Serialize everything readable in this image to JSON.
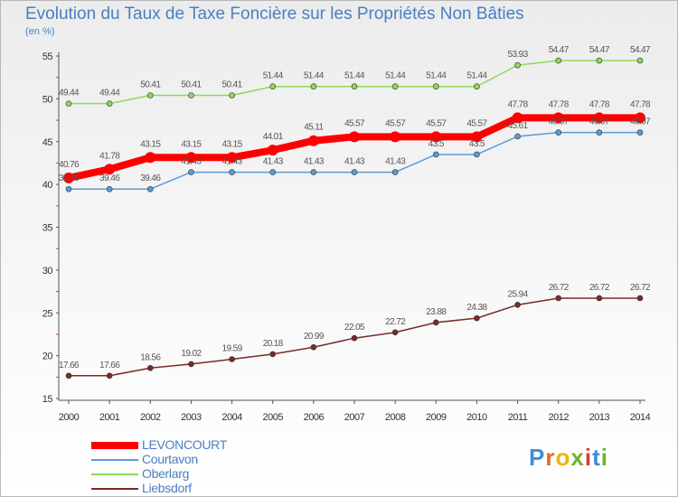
{
  "title": "Evolution du Taux de Taxe Foncière sur les Propriétés Non Bâties",
  "subtitle": "(en %)",
  "logo": {
    "letters": [
      "P",
      "r",
      "o",
      "x",
      "i",
      "t",
      "i"
    ],
    "colors": [
      "#3a8fd8",
      "#e86a1a",
      "#f0b400",
      "#6bb52e",
      "#d83a3a",
      "#3a8fd8",
      "#6bb52e"
    ]
  },
  "chart_data": {
    "type": "line",
    "x": [
      2000,
      2001,
      2002,
      2003,
      2004,
      2005,
      2006,
      2007,
      2008,
      2009,
      2010,
      2011,
      2012,
      2013,
      2014
    ],
    "ylim": [
      15,
      55
    ],
    "yticks": [
      15,
      20,
      25,
      30,
      35,
      40,
      45,
      50,
      55
    ],
    "grid": false,
    "legend_position": "bottom-left",
    "series": [
      {
        "name": "LEVONCOURT",
        "color": "#ff0000",
        "values": [
          40.76,
          41.78,
          43.15,
          43.15,
          43.15,
          44.01,
          45.11,
          45.57,
          45.57,
          45.57,
          45.57,
          47.78,
          47.78,
          47.78,
          47.78
        ],
        "labels": [
          "40.76",
          "41.78",
          "43.15",
          "43.15",
          "43.15",
          "44.01",
          "45.11",
          "45.57",
          "45.57",
          "45.57",
          "45.57",
          "47.78",
          "47.78",
          "47.78",
          "47.78"
        ]
      },
      {
        "name": "Courtavon",
        "color": "#5b9bd5",
        "values": [
          39.46,
          39.46,
          39.46,
          41.43,
          41.43,
          41.43,
          41.43,
          41.43,
          41.43,
          43.5,
          43.5,
          45.61,
          46.07,
          46.07,
          46.07
        ],
        "labels": [
          "39.46",
          "39.46",
          "39.46",
          "41.43",
          "41.43",
          "41.43",
          "41.43",
          "41.43",
          "41.43",
          "43.5",
          "43.5",
          "45.61",
          "46.07",
          "46.07",
          "46.07"
        ]
      },
      {
        "name": "Oberlarg",
        "color": "#8ed85a",
        "values": [
          49.44,
          49.44,
          50.41,
          50.41,
          50.41,
          51.44,
          51.44,
          51.44,
          51.44,
          51.44,
          51.44,
          53.93,
          54.47,
          54.47,
          54.47
        ],
        "labels": [
          "49.44",
          "49.44",
          "50.41",
          "50.41",
          "50.41",
          "51.44",
          "51.44",
          "51.44",
          "51.44",
          "51.44",
          "51.44",
          "53.93",
          "54.47",
          "54.47",
          "54.47"
        ]
      },
      {
        "name": "Liebsdorf",
        "color": "#7a2a2a",
        "values": [
          17.66,
          17.66,
          18.56,
          19.02,
          19.59,
          20.18,
          20.99,
          22.05,
          22.72,
          23.88,
          24.38,
          25.94,
          26.72,
          26.72,
          26.72
        ],
        "labels": [
          "17.66",
          "17.66",
          "18.56",
          "19.02",
          "19.59",
          "20.18",
          "20.99",
          "22.05",
          "22.72",
          "23.88",
          "24.38",
          "25.94",
          "26.72",
          "26.72",
          "26.72"
        ]
      }
    ]
  }
}
